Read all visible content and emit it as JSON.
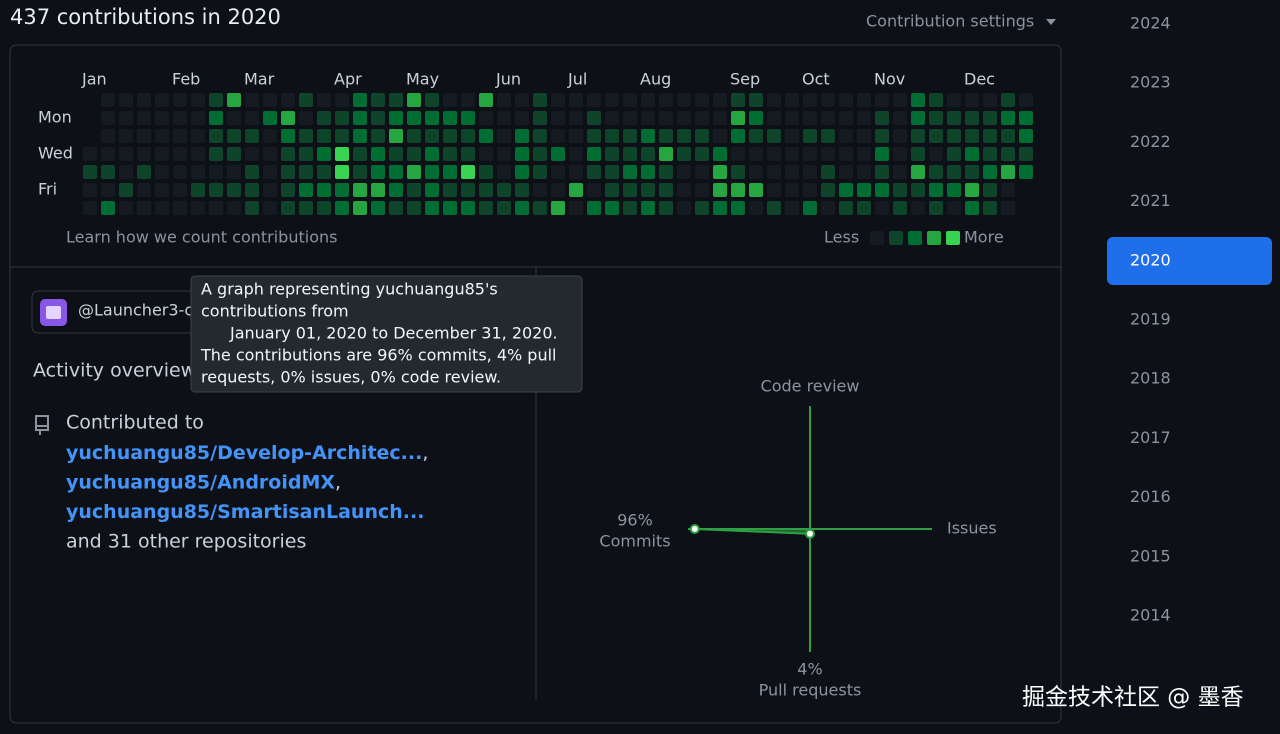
{
  "header": {
    "title": "437 contributions in 2020",
    "settings": "Contribution settings"
  },
  "calendar": {
    "months": [
      "Jan",
      "Feb",
      "Mar",
      "Apr",
      "May",
      "Jun",
      "Jul",
      "Aug",
      "Sep",
      "Oct",
      "Nov",
      "Dec"
    ],
    "days": [
      "Mon",
      "Wed",
      "Fri"
    ],
    "levels": [
      [
        null,
        0,
        0,
        0,
        0,
        0,
        0,
        1,
        3,
        0,
        0,
        0,
        1,
        0,
        0,
        2,
        1,
        1,
        3,
        1,
        0,
        0,
        3,
        0,
        0,
        1,
        0,
        0,
        0,
        0,
        0,
        0,
        0,
        0,
        0,
        0,
        1,
        1,
        0,
        0,
        0,
        0,
        0,
        0,
        0,
        0,
        2,
        1,
        0,
        0,
        0,
        1,
        0
      ],
      [
        null,
        0,
        0,
        0,
        0,
        0,
        0,
        2,
        0,
        0,
        2,
        3,
        0,
        1,
        1,
        2,
        1,
        2,
        2,
        2,
        2,
        2,
        0,
        0,
        0,
        1,
        0,
        0,
        1,
        0,
        0,
        0,
        0,
        0,
        0,
        0,
        3,
        2,
        0,
        0,
        0,
        0,
        0,
        0,
        1,
        0,
        2,
        1,
        1,
        1,
        1,
        2,
        2
      ],
      [
        null,
        0,
        0,
        0,
        0,
        0,
        0,
        1,
        1,
        1,
        0,
        2,
        1,
        1,
        1,
        2,
        1,
        3,
        1,
        1,
        1,
        1,
        2,
        0,
        2,
        1,
        0,
        0,
        1,
        1,
        1,
        2,
        1,
        1,
        1,
        0,
        2,
        1,
        1,
        0,
        1,
        1,
        0,
        0,
        1,
        0,
        1,
        1,
        1,
        1,
        1,
        1,
        2
      ],
      [
        0,
        0,
        0,
        0,
        0,
        0,
        0,
        1,
        1,
        0,
        0,
        1,
        1,
        2,
        4,
        1,
        2,
        1,
        1,
        2,
        1,
        1,
        0,
        0,
        2,
        1,
        2,
        0,
        2,
        1,
        1,
        1,
        3,
        1,
        1,
        2,
        0,
        0,
        0,
        0,
        0,
        0,
        0,
        0,
        2,
        0,
        1,
        0,
        1,
        2,
        1,
        1,
        1
      ],
      [
        1,
        1,
        0,
        1,
        0,
        0,
        0,
        0,
        0,
        1,
        0,
        1,
        1,
        1,
        4,
        1,
        2,
        2,
        3,
        2,
        2,
        4,
        1,
        0,
        2,
        1,
        0,
        0,
        1,
        1,
        2,
        2,
        1,
        0,
        0,
        3,
        1,
        0,
        0,
        0,
        0,
        1,
        0,
        0,
        1,
        0,
        3,
        1,
        1,
        1,
        2,
        3,
        2
      ],
      [
        0,
        0,
        1,
        0,
        0,
        0,
        1,
        1,
        1,
        1,
        0,
        1,
        2,
        2,
        2,
        3,
        3,
        2,
        1,
        2,
        1,
        1,
        1,
        1,
        1,
        0,
        0,
        3,
        0,
        1,
        1,
        1,
        1,
        0,
        0,
        3,
        3,
        3,
        0,
        0,
        0,
        1,
        2,
        2,
        2,
        1,
        1,
        2,
        2,
        3,
        1,
        0,
        null
      ],
      [
        0,
        2,
        0,
        0,
        0,
        0,
        0,
        0,
        0,
        1,
        0,
        1,
        1,
        1,
        2,
        3,
        2,
        1,
        1,
        2,
        2,
        2,
        1,
        1,
        2,
        1,
        3,
        0,
        2,
        2,
        1,
        2,
        1,
        0,
        1,
        2,
        2,
        0,
        1,
        0,
        2,
        0,
        1,
        1,
        0,
        1,
        0,
        1,
        0,
        2,
        1,
        0,
        null
      ]
    ],
    "level_colors": [
      "#161b22",
      "#0e4429",
      "#006d32",
      "#26a641",
      "#39d353"
    ],
    "footer_link": "Learn how we count contributions",
    "legend": {
      "less": "Less",
      "more": "More",
      "levels": [
        0,
        1,
        2,
        3,
        4
      ]
    }
  },
  "tooltip": {
    "lines": [
      "A graph representing yuchuangu85's",
      "contributions from",
      "January 01, 2020 to December 31, 2020.",
      "The contributions are 96% commits, 4% pull",
      "requests, 0% issues, 0% code review."
    ]
  },
  "organization": "@Launcher3-c",
  "activity": {
    "title": "Activity overview",
    "contributed_to": "Contributed to",
    "repos": [
      "yuchuangu85/Develop-Architec...",
      "yuchuangu85/AndroidMX",
      "yuchuangu85/SmartisanLaunch..."
    ],
    "separator": ",",
    "others": "and 31 other repositories"
  },
  "radar": {
    "axes": [
      {
        "label": "Code review",
        "value": 0
      },
      {
        "label": "Issues",
        "value": 0
      },
      {
        "label": "Pull requests",
        "value": 4,
        "value_label": "4%"
      },
      {
        "label": "Commits",
        "value": 96,
        "value_label": "96%"
      }
    ],
    "color": "#2ea043"
  },
  "years": [
    "2024",
    "2023",
    "2022",
    "2021",
    "2020",
    "2019",
    "2018",
    "2017",
    "2016",
    "2015",
    "2014"
  ],
  "selected_year": "2020",
  "watermark": "掘金技术社区 @ 墨香"
}
